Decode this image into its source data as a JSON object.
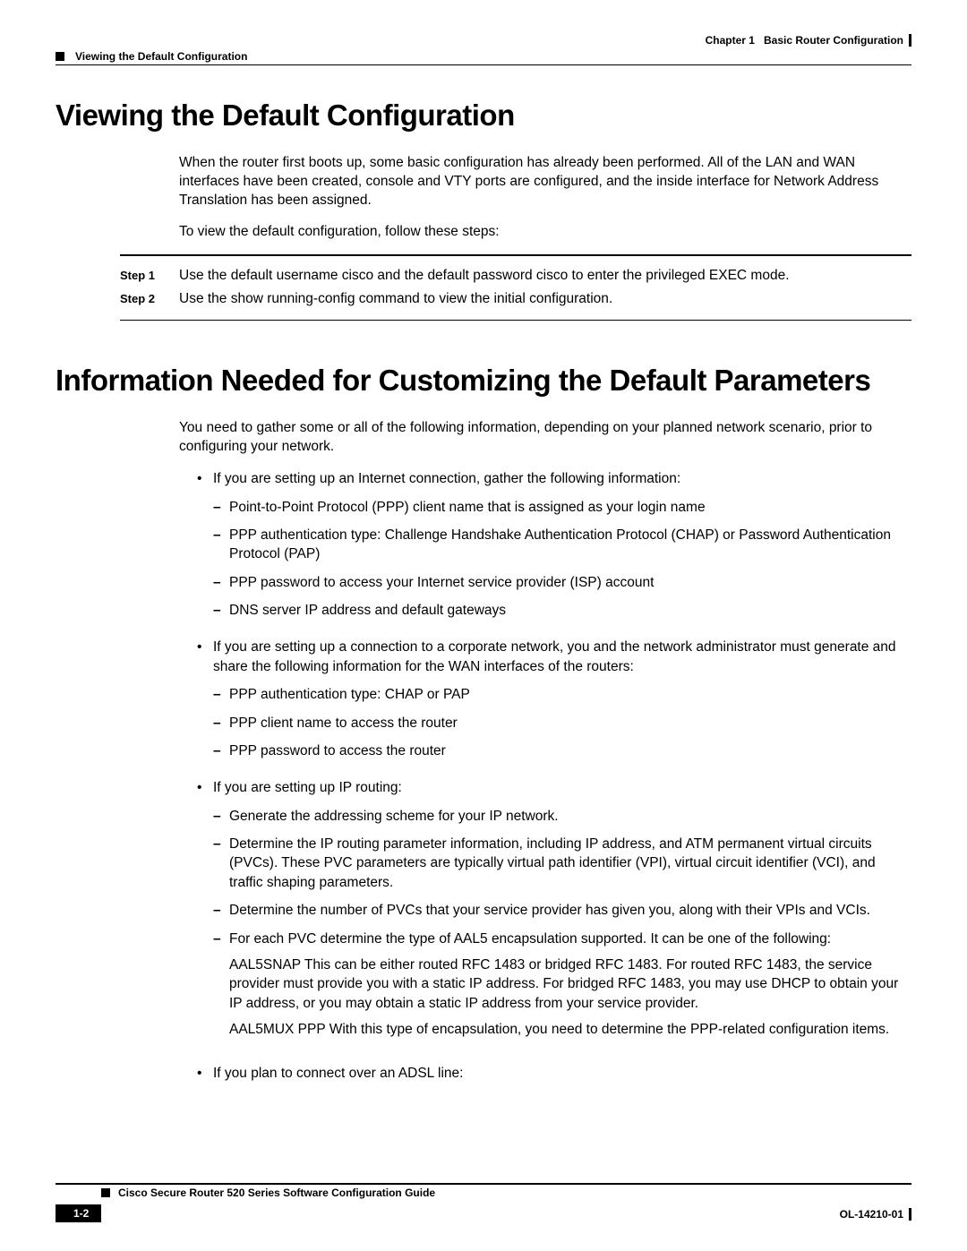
{
  "header": {
    "chapter_label": "Chapter 1",
    "chapter_title": "Basic Router Configuration",
    "section_title": "Viewing the Default Configuration"
  },
  "section1": {
    "heading": "Viewing the Default Configuration",
    "p1": "When the router first boots up, some basic configuration has already been performed. All of the LAN and WAN interfaces have been created, console and VTY ports are configured, and the inside interface for Network Address Translation has been assigned.",
    "p2": "To view the default configuration, follow these steps:",
    "steps": [
      {
        "label": "Step 1",
        "text": "Use the default username cisco and the default password cisco to enter the privileged EXEC mode."
      },
      {
        "label": "Step 2",
        "text": "Use the show running-config command to view the initial configuration."
      }
    ]
  },
  "section2": {
    "heading": "Information Needed for Customizing the Default Parameters",
    "p1": "You need to gather some or all of the following information, depending on your planned network scenario, prior to configuring your network.",
    "b1": {
      "lead": "If you are setting up an Internet connection, gather the following information:",
      "items": [
        "Point-to-Point Protocol (PPP) client name that is assigned as your login name",
        "PPP authentication type: Challenge Handshake Authentication Protocol (CHAP) or Password Authentication Protocol (PAP)",
        "PPP password to access your Internet service provider (ISP) account",
        "DNS server IP address and default gateways"
      ]
    },
    "b2": {
      "lead": "If you are setting up a connection to a corporate network, you and the network administrator must generate and share the following information for the WAN interfaces of the routers:",
      "items": [
        "PPP authentication type: CHAP or PAP",
        "PPP client name to access the router",
        "PPP password to access the router"
      ]
    },
    "b3": {
      "lead": "If you are setting up IP routing:",
      "i1": "Generate the addressing scheme for your IP network.",
      "i2": "Determine the IP routing parameter information, including IP address, and ATM permanent virtual circuits (PVCs). These PVC parameters are typically virtual path identifier (VPI), virtual circuit identifier (VCI), and traffic shaping parameters.",
      "i3": "Determine the number of PVCs that your service provider has given you, along with their VPIs and VCIs.",
      "i4": "For each PVC determine the type of AAL5 encapsulation supported. It can be one of the following:",
      "i4a": "AAL5SNAP This can be either routed RFC 1483 or bridged RFC 1483. For routed RFC 1483, the service provider must provide you with a static IP address. For bridged RFC 1483, you may use DHCP to obtain your IP address, or you may obtain a static IP address from your service provider.",
      "i4b": "AAL5MUX PPP With this type of encapsulation, you need to determine the PPP-related configuration items."
    },
    "b4": {
      "lead": "If you plan to connect over an ADSL line:"
    }
  },
  "footer": {
    "book_title": "Cisco Secure Router 520 Series Software Configuration Guide",
    "page": "1-2",
    "doc_id": "OL-14210-01"
  }
}
